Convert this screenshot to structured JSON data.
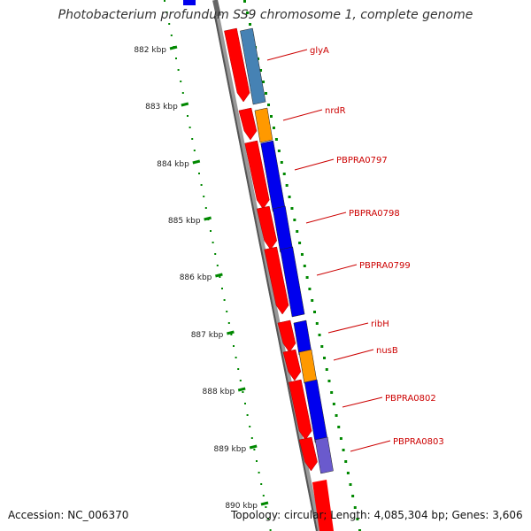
{
  "title": "Photobacterium profundum SS9 chromosome 1, complete genome",
  "accession": "Accession: NC_006370",
  "topology": "Topology: circular; Length: 4,085,304 bp; Genes: 3,606",
  "colors": {
    "forward_rna": "#ff0000",
    "cds_blue": "#0000ee",
    "cds_steel": "#4682b4",
    "cds_orange": "#ff9900",
    "cds_slate": "#6a5acd",
    "tick_green": "#008800",
    "label_red": "#cc0000",
    "backbone": "#888888"
  },
  "ticks": [
    {
      "label": "882 kbp"
    },
    {
      "label": "883 kbp"
    },
    {
      "label": "884 kbp"
    },
    {
      "label": "885 kbp"
    },
    {
      "label": "886 kbp"
    },
    {
      "label": "887 kbp"
    },
    {
      "label": "888 kbp"
    },
    {
      "label": "889 kbp"
    },
    {
      "label": "890 kbp"
    }
  ],
  "genes": [
    {
      "name": "glyA",
      "color": "cds_steel"
    },
    {
      "name": "nrdR",
      "color": "cds_orange"
    },
    {
      "name": "PBPRA0797",
      "color": "cds_blue"
    },
    {
      "name": "PBPRA0798",
      "color": "cds_blue"
    },
    {
      "name": "PBPRA0799",
      "color": "cds_blue"
    },
    {
      "name": "ribH",
      "color": "cds_blue"
    },
    {
      "name": "nusB",
      "color": "cds_orange"
    },
    {
      "name": "PBPRA0802",
      "color": "cds_blue"
    },
    {
      "name": "PBPRA0803",
      "color": "cds_slate"
    }
  ]
}
